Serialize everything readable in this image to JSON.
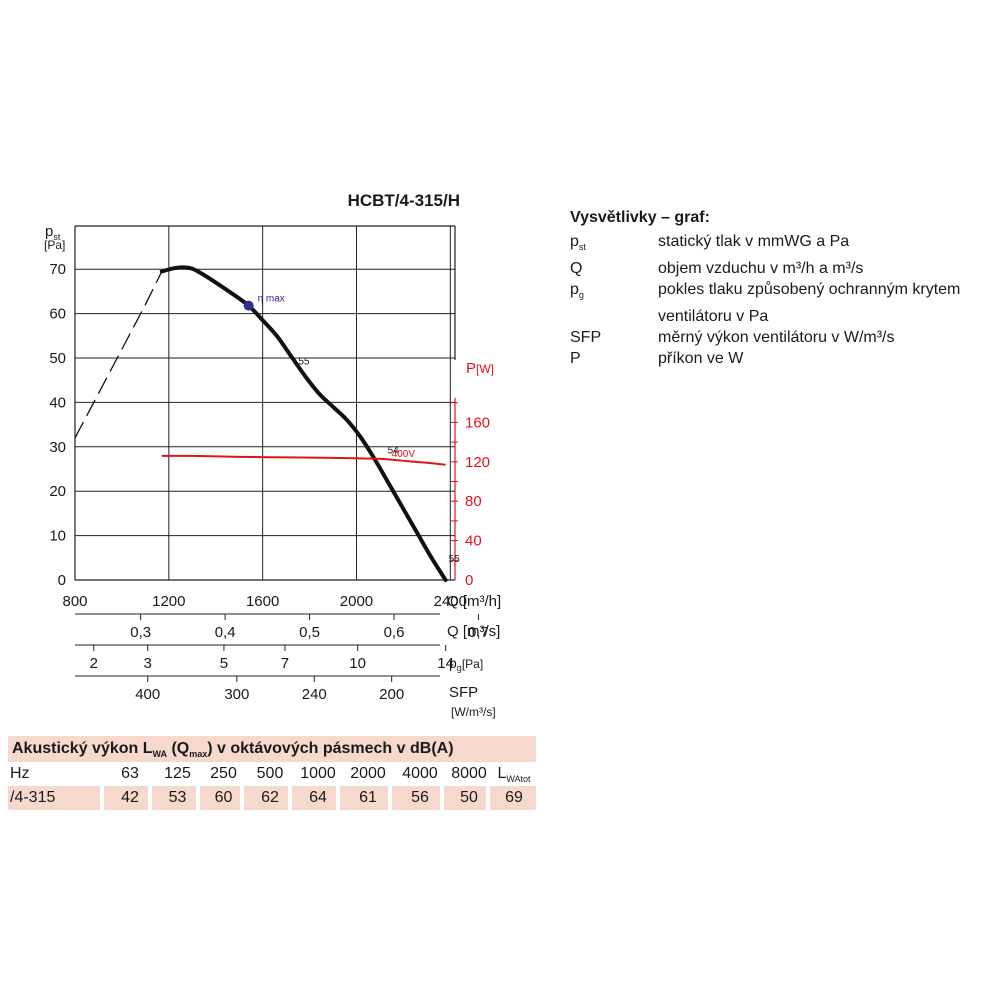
{
  "chart_data": {
    "type": "line",
    "title": "HCBT/4-315/H",
    "y_label": "p",
    "y_label_sub": "st",
    "y_unit": "[Pa]",
    "y_ticks": [
      "0",
      "10",
      "20",
      "30",
      "40",
      "50",
      "60",
      "70"
    ],
    "ylim": [
      0,
      75
    ],
    "x_label": "Q [m³/h]",
    "x_ticks": [
      "800",
      "1200",
      "1600",
      "2000",
      "2400"
    ],
    "xlim": [
      800,
      2420
    ],
    "y2_label": "P",
    "y2_unit": "[W]",
    "y2_ticks": [
      "0",
      "40",
      "80",
      "120",
      "160"
    ],
    "y2lim": [
      0,
      160
    ],
    "grid": true,
    "pressure_curve": {
      "name": "pressure",
      "x": [
        1170,
        1220,
        1260,
        1300,
        1340,
        1400,
        1470,
        1540,
        1600,
        1660,
        1720,
        1780,
        1840,
        1900,
        1960,
        2020,
        2080,
        2140,
        2200,
        2260,
        2320,
        2380
      ],
      "y": [
        69.5,
        70.2,
        70.4,
        70.1,
        69,
        67,
        64.5,
        61.8,
        58.5,
        55,
        50.5,
        46,
        42,
        39,
        36,
        32,
        27,
        21.5,
        16,
        10.5,
        5,
        0
      ]
    },
    "pressure_dashed": {
      "x": [
        800,
        860,
        920,
        980,
        1040,
        1100,
        1170
      ],
      "y": [
        32,
        38,
        44,
        50,
        56,
        62,
        69.5
      ]
    },
    "power_curve": {
      "name": "400V",
      "x": [
        1170,
        1300,
        1500,
        1700,
        1900,
        2100,
        2200,
        2300,
        2380
      ],
      "y": [
        126,
        126,
        125,
        124.5,
        124,
        123,
        121,
        119,
        117
      ]
    },
    "eta_max": {
      "label": "η max",
      "x": 1540,
      "y": 61.8
    },
    "curve_labels": [
      {
        "text": "55",
        "x": 1740,
        "y": 48.5
      },
      {
        "text": "54",
        "x": 2120,
        "y": 28.5
      },
      {
        "text": "55",
        "x": 2380,
        "y": 4
      }
    ],
    "q_m3s": {
      "label": "Q [m³/s]",
      "ticks": [
        {
          "text": "0,3",
          "v": 0.3
        },
        {
          "text": "0,4",
          "v": 0.4
        },
        {
          "text": "0,5",
          "v": 0.5
        },
        {
          "text": "0,6",
          "v": 0.6
        },
        {
          "text": "0,7",
          "v": 0.7
        }
      ]
    },
    "pg": {
      "label": "p",
      "label_sub": "g",
      "unit": "[Pa]",
      "ticks": [
        {
          "text": "2",
          "q": 880
        },
        {
          "text": "3",
          "q": 1110
        },
        {
          "text": "5",
          "q": 1435
        },
        {
          "text": "7",
          "q": 1695
        },
        {
          "text": "10",
          "q": 2005
        },
        {
          "text": "14",
          "q": 2380
        }
      ]
    },
    "sfp": {
      "label": "SFP",
      "unit": "[W/m³/s]",
      "ticks": [
        {
          "text": "400",
          "q": 1110
        },
        {
          "text": "300",
          "q": 1490
        },
        {
          "text": "240",
          "q": 1820
        },
        {
          "text": "200",
          "q": 2150
        }
      ]
    }
  },
  "legend": {
    "title": "Vysvětlivky – graf:",
    "items": [
      {
        "symbol": "p",
        "symbol_sub": "st",
        "text": "statický tlak v mmWG a Pa"
      },
      {
        "symbol": "Q",
        "symbol_sub": "",
        "text": "objem vzduchu v m³/h a m³/s"
      },
      {
        "symbol": "p",
        "symbol_sub": "g",
        "text": "pokles tlaku způsobený ochranným krytem"
      },
      {
        "symbol": "",
        "symbol_sub": "",
        "text": "ventilátoru v Pa"
      },
      {
        "symbol": "SFP",
        "symbol_sub": "",
        "text": "měrný výkon ventilátoru v W/m³/s"
      },
      {
        "symbol": "P",
        "symbol_sub": "",
        "text": "příkon ve W"
      }
    ]
  },
  "acoustic": {
    "title_pre": "Akustický výkon L",
    "title_sub1": "WA",
    "title_mid": " (Q",
    "title_sub2": "max",
    "title_post": ") v oktávových pásmech v dB(A)",
    "hz_label": "Hz",
    "bands": [
      "63",
      "125",
      "250",
      "500",
      "1000",
      "2000",
      "4000",
      "8000"
    ],
    "total_label": "L",
    "total_sub": "WAtot",
    "row_label": "/4-315",
    "values": [
      "42",
      "53",
      "60",
      "62",
      "64",
      "61",
      "56",
      "50",
      "69"
    ]
  },
  "colors": {
    "pressure": "#111111",
    "power": "#e0141b",
    "eta_dot": "#2b2f8e",
    "grid": "#222222",
    "table_fill": "#f6d9cc"
  }
}
